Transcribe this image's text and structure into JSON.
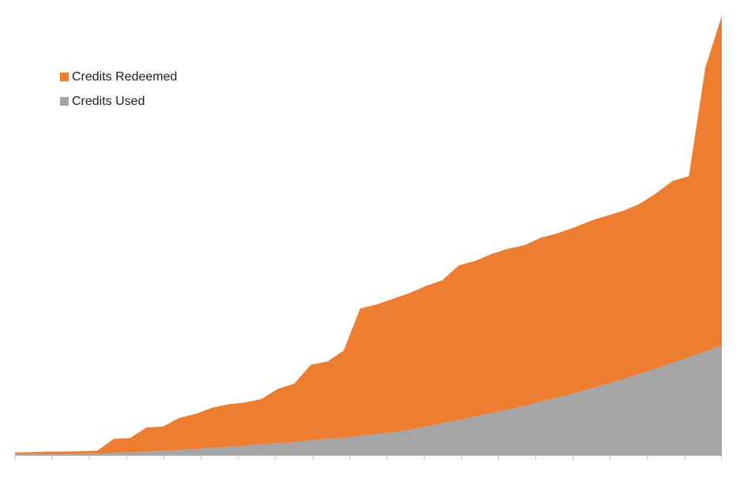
{
  "chart_data": {
    "type": "area",
    "stacked": true,
    "x_tick_count": 20,
    "ylim": [
      0,
      100
    ],
    "legend_position": "top-left",
    "grid": false,
    "series": [
      {
        "name": "Credits Used",
        "color": "#a5a5a5",
        "values": [
          0.2,
          0.3,
          0.3,
          0.3,
          0.4,
          0.4,
          0.5,
          0.7,
          0.8,
          1.0,
          1.2,
          1.4,
          1.7,
          1.9,
          2.2,
          2.5,
          2.7,
          3.0,
          3.4,
          3.7,
          4.0,
          4.4,
          4.8,
          5.2,
          5.8,
          6.5,
          7.3,
          8.0,
          8.8,
          9.6,
          10.4,
          11.2,
          12.2,
          13.1,
          14.1,
          15.1,
          16.2,
          17.3,
          18.5,
          19.7,
          21.0,
          22.3,
          23.6,
          24.9
        ]
      },
      {
        "name": "Credits Redeemed",
        "color": "#ed7d31",
        "values": [
          0.4,
          0.4,
          0.5,
          0.5,
          0.5,
          0.6,
          3.2,
          3.2,
          5.5,
          5.5,
          7.3,
          8.0,
          9.1,
          9.7,
          9.8,
          10.3,
          12.4,
          13.3,
          17.2,
          17.6,
          19.8,
          29.0,
          29.5,
          30.4,
          31.1,
          32.0,
          32.5,
          35.2,
          35.4,
          36.2,
          36.6,
          36.6,
          37.3,
          37.4,
          37.7,
          38.2,
          38.3,
          38.3,
          38.7,
          39.9,
          41.4,
          41.2,
          64.6,
          75.1
        ]
      }
    ]
  },
  "legend": {
    "items": [
      {
        "label": "Credits Redeemed",
        "color": "#ed7d31"
      },
      {
        "label": "Credits Used",
        "color": "#a5a5a5"
      }
    ]
  }
}
